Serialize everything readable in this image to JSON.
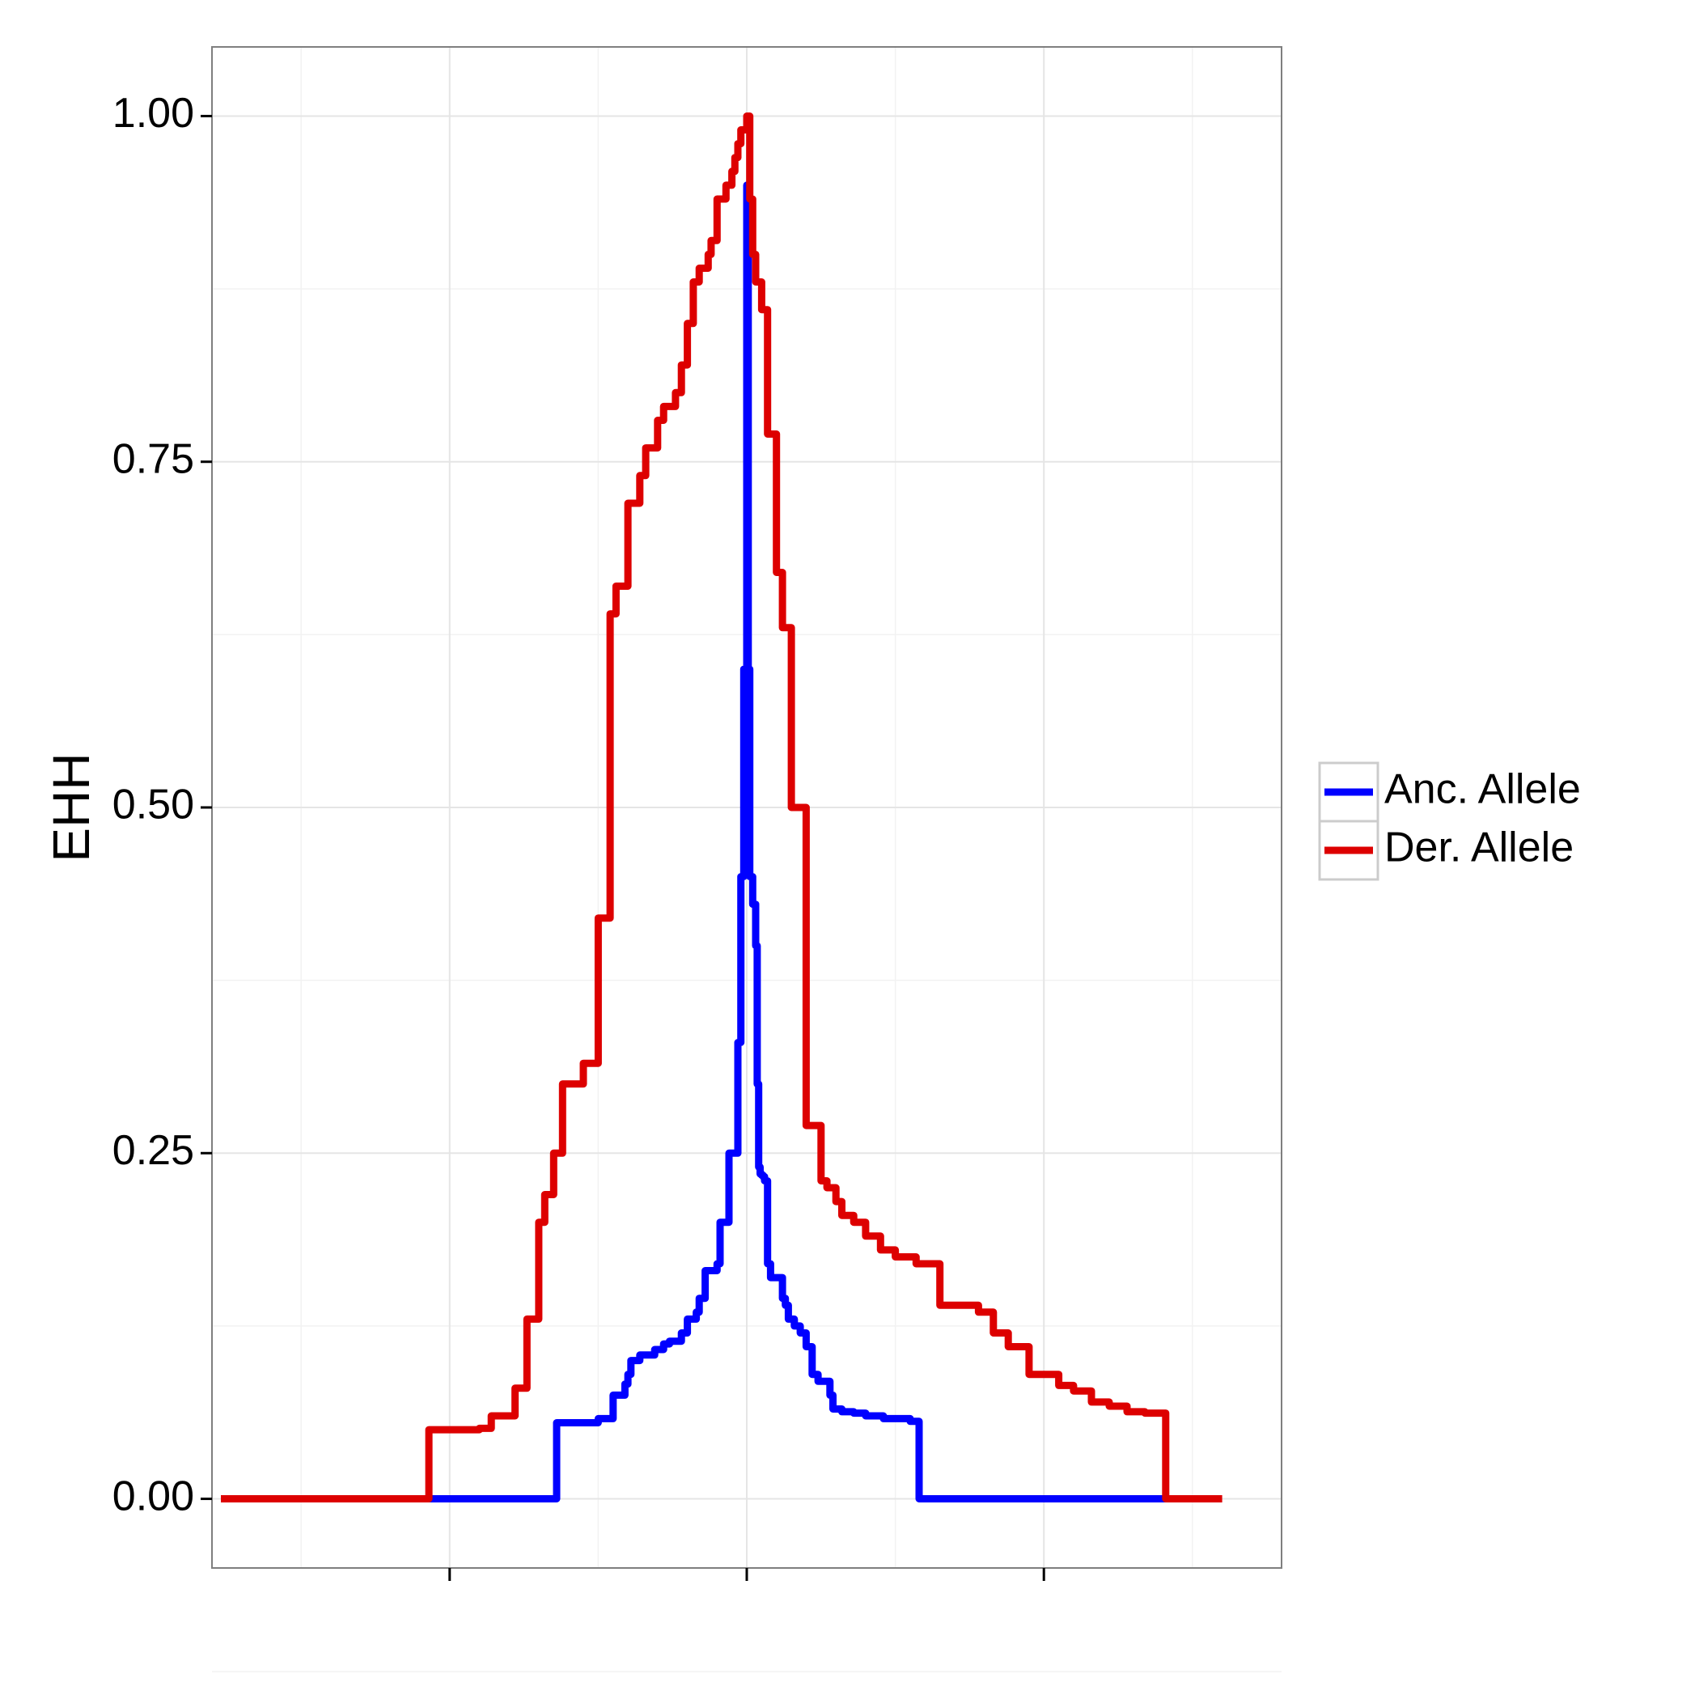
{
  "chart_data": {
    "type": "line",
    "title": "",
    "xlabel": "",
    "ylabel": "EHH",
    "xlim": [
      -18,
      18
    ],
    "ylim": [
      -0.05,
      1.05
    ],
    "x_ticks": [
      -10,
      0,
      10
    ],
    "y_ticks": [
      0,
      0.25,
      0.5,
      0.75,
      1
    ],
    "y_tick_labels": [
      "0.00",
      "0.25",
      "0.50",
      "0.75",
      "1.00"
    ],
    "grid": true,
    "legend_position": "right",
    "series": [
      {
        "name": "Anc. Allele",
        "color": "#0000FF",
        "step": true,
        "x": [
          -17.7,
          -6.4,
          -6.4,
          -5.0,
          -4.5,
          -4.5,
          -4.1,
          -4.0,
          -3.9,
          -3.6,
          -3.1,
          -2.8,
          -2.6,
          -2.2,
          -2.0,
          -1.7,
          -1.6,
          -1.4,
          -1.0,
          -0.9,
          -0.6,
          -0.3,
          -0.2,
          -0.1,
          0.0,
          0.05,
          0.1,
          0.2,
          0.3,
          0.35,
          0.4,
          0.45,
          0.5,
          0.55,
          0.6,
          0.7,
          0.8,
          1.2,
          1.3,
          1.4,
          1.6,
          1.8,
          2.0,
          2.2,
          2.4,
          2.8,
          2.9,
          3.2,
          3.6,
          4.0,
          4.6,
          5.5,
          5.8,
          5.8,
          14.1
        ],
        "y": [
          0.0,
          0.0,
          0.055,
          0.058,
          0.062,
          0.075,
          0.083,
          0.09,
          0.1,
          0.104,
          0.108,
          0.112,
          0.114,
          0.12,
          0.13,
          0.135,
          0.145,
          0.165,
          0.17,
          0.2,
          0.25,
          0.33,
          0.45,
          0.6,
          0.95,
          0.6,
          0.45,
          0.43,
          0.4,
          0.3,
          0.24,
          0.235,
          0.234,
          0.233,
          0.23,
          0.17,
          0.16,
          0.145,
          0.14,
          0.13,
          0.125,
          0.12,
          0.11,
          0.09,
          0.085,
          0.075,
          0.065,
          0.063,
          0.062,
          0.06,
          0.058,
          0.056,
          0.05,
          0.0,
          0.0
        ]
      },
      {
        "name": "Der. Allele",
        "color": "#DD0000",
        "step": true,
        "x": [
          -17.7,
          -10.7,
          -10.7,
          -9.0,
          -8.6,
          -7.8,
          -7.4,
          -7.0,
          -6.8,
          -6.5,
          -6.2,
          -5.5,
          -5.0,
          -4.6,
          -4.4,
          -4.0,
          -3.6,
          -3.4,
          -3.0,
          -2.8,
          -2.4,
          -2.2,
          -2.0,
          -1.8,
          -1.6,
          -1.3,
          -1.2,
          -1.0,
          -0.7,
          -0.5,
          -0.4,
          -0.3,
          -0.2,
          0.0,
          0.1,
          0.2,
          0.3,
          0.5,
          0.7,
          1.0,
          1.2,
          1.5,
          2.0,
          2.5,
          2.7,
          3.0,
          3.2,
          3.6,
          4.0,
          4.5,
          5.0,
          5.7,
          6.5,
          7.8,
          8.3,
          8.8,
          9.5,
          10.5,
          11.0,
          11.6,
          12.2,
          12.8,
          13.4,
          14.1,
          14.1,
          16.0
        ],
        "y": [
          0.0,
          0.0,
          0.05,
          0.051,
          0.06,
          0.08,
          0.13,
          0.2,
          0.22,
          0.25,
          0.3,
          0.315,
          0.42,
          0.64,
          0.66,
          0.72,
          0.74,
          0.76,
          0.78,
          0.79,
          0.8,
          0.82,
          0.85,
          0.88,
          0.89,
          0.9,
          0.91,
          0.94,
          0.95,
          0.96,
          0.97,
          0.98,
          0.99,
          1.0,
          0.94,
          0.9,
          0.88,
          0.86,
          0.77,
          0.67,
          0.63,
          0.5,
          0.27,
          0.23,
          0.225,
          0.215,
          0.205,
          0.2,
          0.19,
          0.18,
          0.175,
          0.17,
          0.14,
          0.135,
          0.12,
          0.11,
          0.09,
          0.082,
          0.078,
          0.07,
          0.067,
          0.063,
          0.062,
          0.05,
          0.0,
          0.0
        ]
      }
    ]
  }
}
